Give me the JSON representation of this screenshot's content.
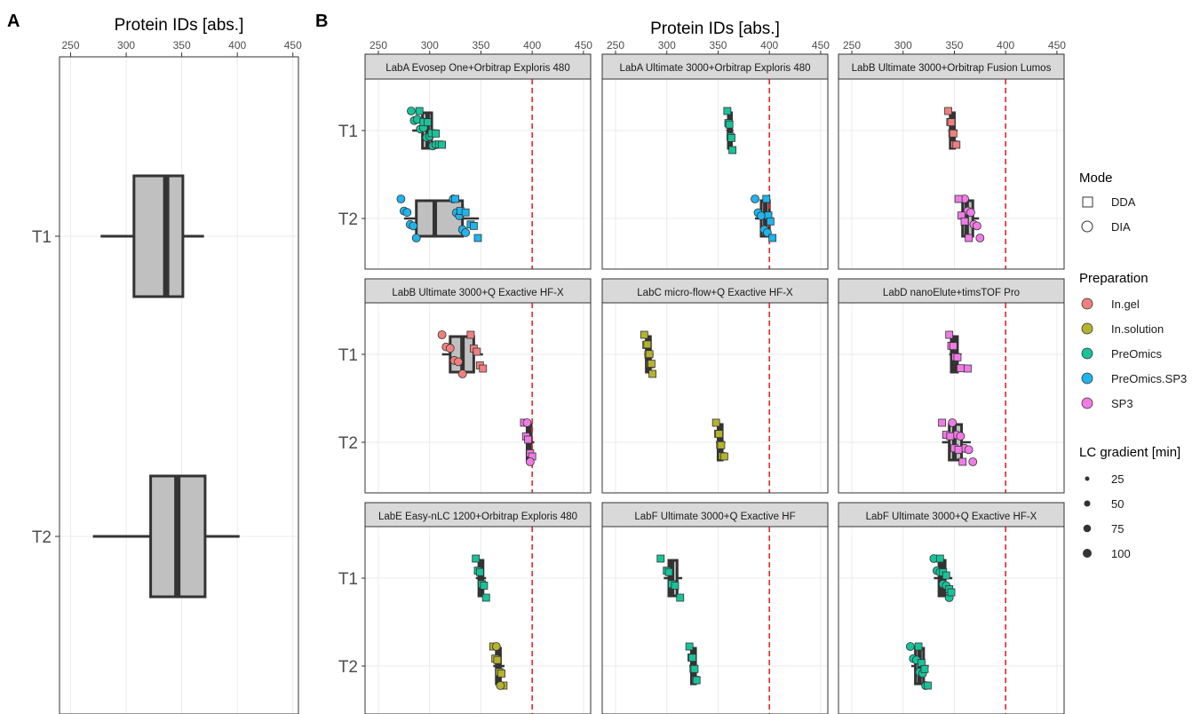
{
  "panel_labels": {
    "a": "A",
    "b": "B"
  },
  "legend": {
    "mode": {
      "title": "Mode",
      "items": [
        {
          "label": "DDA",
          "shape": "square"
        },
        {
          "label": "DIA",
          "shape": "circle"
        }
      ]
    },
    "preparation": {
      "title": "Preparation",
      "items": [
        {
          "label": "In.gel",
          "color": "#F08080"
        },
        {
          "label": "In.solution",
          "color": "#B5B22F"
        },
        {
          "label": "PreOmics",
          "color": "#18C39A"
        },
        {
          "label": "PreOmics.SP3",
          "color": "#1FB4EC"
        },
        {
          "label": "SP3",
          "color": "#F07BE6"
        }
      ]
    },
    "lc_gradient": {
      "title": "LC gradient [min]",
      "items": [
        "25",
        "50",
        "75",
        "100"
      ]
    }
  },
  "chart_data": [
    {
      "type": "box",
      "panel": "A",
      "xlabel": "Protein IDs [abs.]",
      "xlim": [
        240,
        455
      ],
      "xticks": [
        250,
        300,
        350,
        400,
        450
      ],
      "categories": [
        "T1",
        "T2"
      ],
      "boxes": [
        {
          "category": "T1",
          "whisker_low": 277,
          "q1": 307,
          "median": 336,
          "q3": 351,
          "whisker_high": 370
        },
        {
          "category": "T2",
          "whisker_low": 270,
          "q1": 322,
          "median": 346,
          "q3": 371,
          "whisker_high": 402
        }
      ]
    },
    {
      "type": "scatter",
      "panel": "B",
      "xlabel": "Protein IDs [abs.]",
      "xlim": [
        237,
        457
      ],
      "xticks": [
        250,
        300,
        350,
        400,
        450
      ],
      "reference_line": 400,
      "categories": [
        "T1",
        "T2"
      ],
      "facets": [
        {
          "title": "LabA Evosep One+Orbitrap Exploris 480",
          "boxes": [
            {
              "category": "T1",
              "whisker_low": 283,
              "q1": 293,
              "median": 298,
              "q3": 302,
              "whisker_high": 308
            },
            {
              "category": "T2",
              "whisker_low": 275,
              "q1": 287,
              "median": 305,
              "q3": 332,
              "whisker_high": 348
            }
          ],
          "groups": [
            {
              "category": "T1",
              "prep": "PreOmics",
              "mode": "DIA",
              "values": [
                282,
                285,
                288,
                291,
                294,
                297,
                300,
                303,
                306
              ]
            },
            {
              "category": "T1",
              "prep": "PreOmics",
              "mode": "DDA",
              "values": [
                290,
                294,
                298,
                302,
                306,
                309,
                312
              ]
            },
            {
              "category": "T2",
              "prep": "PreOmics.SP3",
              "mode": "DIA",
              "values": [
                272,
                275,
                278,
                281,
                284,
                287
              ]
            },
            {
              "category": "T2",
              "prep": "PreOmics.SP3",
              "mode": "DIA",
              "values": [
                323,
                326,
                329,
                332,
                335
              ]
            },
            {
              "category": "T2",
              "prep": "PreOmics.SP3",
              "mode": "DDA",
              "values": [
                325,
                330,
                335,
                340,
                343,
                347
              ]
            }
          ]
        },
        {
          "title": "LabA Ultimate 3000+Orbitrap Exploris 480",
          "boxes": [
            {
              "category": "T1",
              "whisker_low": 358,
              "q1": 360,
              "median": 362,
              "q3": 363,
              "whisker_high": 365
            },
            {
              "category": "T2",
              "whisker_low": 386,
              "q1": 392,
              "median": 396,
              "q3": 400,
              "whisker_high": 404
            }
          ],
          "groups": [
            {
              "category": "T1",
              "prep": "PreOmics",
              "mode": "DDA",
              "values": [
                359,
                360,
                361,
                362,
                363,
                364
              ]
            },
            {
              "category": "T2",
              "prep": "PreOmics.SP3",
              "mode": "DIA",
              "values": [
                386,
                389,
                392,
                395,
                398
              ]
            },
            {
              "category": "T2",
              "prep": "PreOmics.SP3",
              "mode": "DDA",
              "values": [
                397,
                399,
                401,
                403
              ]
            }
          ]
        },
        {
          "title": "LabB Ultimate 3000+Orbitrap Fusion Lumos",
          "boxes": [
            {
              "category": "T1",
              "whisker_low": 344,
              "q1": 346,
              "median": 348,
              "q3": 350,
              "whisker_high": 353
            },
            {
              "category": "T2",
              "whisker_low": 355,
              "q1": 358,
              "median": 362,
              "q3": 368,
              "whisker_high": 374
            }
          ],
          "groups": [
            {
              "category": "T1",
              "prep": "In.gel",
              "mode": "DDA",
              "values": [
                344,
                346,
                347,
                348,
                349,
                350,
                352
              ]
            },
            {
              "category": "T2",
              "prep": "SP3",
              "mode": "DIA",
              "values": [
                360,
                363,
                366,
                369,
                372,
                375
              ]
            },
            {
              "category": "T2",
              "prep": "SP3",
              "mode": "DDA",
              "values": [
                354,
                357,
                360,
                364
              ]
            }
          ]
        },
        {
          "title": "LabB Ultimate 3000+Q Exactive HF-X",
          "boxes": [
            {
              "category": "T1",
              "whisker_low": 312,
              "q1": 320,
              "median": 332,
              "q3": 343,
              "whisker_high": 352
            },
            {
              "category": "T2",
              "whisker_low": 393,
              "q1": 395,
              "median": 397,
              "q3": 399,
              "whisker_high": 402
            }
          ],
          "groups": [
            {
              "category": "T1",
              "prep": "In.gel",
              "mode": "DIA",
              "values": [
                312,
                316,
                320,
                324,
                328,
                332
              ]
            },
            {
              "category": "T1",
              "prep": "In.gel",
              "mode": "DDA",
              "values": [
                340,
                343,
                346,
                349,
                352
              ]
            },
            {
              "category": "T2",
              "prep": "SP3",
              "mode": "DDA",
              "values": [
                392,
                394,
                396,
                398,
                400
              ]
            },
            {
              "category": "T2",
              "prep": "SP3",
              "mode": "DIA",
              "values": [
                395,
                398
              ]
            }
          ]
        },
        {
          "title": "LabC micro-flow+Q Exactive HF-X",
          "boxes": [
            {
              "category": "T1",
              "whisker_low": 278,
              "q1": 280,
              "median": 282,
              "q3": 284,
              "whisker_high": 287
            },
            {
              "category": "T2",
              "whisker_low": 348,
              "q1": 350,
              "median": 352,
              "q3": 354,
              "whisker_high": 357
            }
          ],
          "groups": [
            {
              "category": "T1",
              "prep": "In.solution",
              "mode": "DDA",
              "values": [
                278,
                280,
                281,
                282,
                283,
                284,
                285,
                286
              ]
            },
            {
              "category": "T2",
              "prep": "In.solution",
              "mode": "DDA",
              "values": [
                348,
                350,
                351,
                352,
                353,
                354,
                356
              ]
            }
          ]
        },
        {
          "title": "LabD nanoElute+timsTOF Pro",
          "boxes": [
            {
              "category": "T1",
              "whisker_low": 345,
              "q1": 347,
              "median": 350,
              "q3": 353,
              "whisker_high": 357
            },
            {
              "category": "T2",
              "whisker_low": 338,
              "q1": 345,
              "median": 350,
              "q3": 357,
              "whisker_high": 366
            }
          ],
          "groups": [
            {
              "category": "T1",
              "prep": "SP3",
              "mode": "DDA",
              "values": [
                345,
                347,
                349,
                351,
                353,
                356,
                363
              ]
            },
            {
              "category": "T2",
              "prep": "SP3",
              "mode": "DIA",
              "values": [
                348,
                352,
                356,
                360,
                364,
                368
              ]
            },
            {
              "category": "T2",
              "prep": "SP3",
              "mode": "DDA",
              "values": [
                338,
                342,
                346,
                350,
                354,
                358
              ]
            }
          ]
        },
        {
          "title": "LabE Easy-nLC 1200+Orbitrap Exploris 480",
          "boxes": [
            {
              "category": "T1",
              "whisker_low": 345,
              "q1": 348,
              "median": 350,
              "q3": 352,
              "whisker_high": 355
            },
            {
              "category": "T2",
              "whisker_low": 362,
              "q1": 365,
              "median": 367,
              "q3": 369,
              "whisker_high": 373
            }
          ],
          "groups": [
            {
              "category": "T1",
              "prep": "PreOmics",
              "mode": "DDA",
              "values": [
                345,
                347,
                349,
                351,
                353,
                355
              ]
            },
            {
              "category": "T2",
              "prep": "In.solution",
              "mode": "DDA",
              "values": [
                362,
                364,
                366,
                368,
                370,
                372
              ]
            },
            {
              "category": "T2",
              "prep": "In.solution",
              "mode": "DIA",
              "values": [
                365,
                369
              ]
            }
          ]
        },
        {
          "title": "LabF Ultimate 3000+Q Exactive HF",
          "boxes": [
            {
              "category": "T1",
              "whisker_low": 297,
              "q1": 302,
              "median": 305,
              "q3": 310,
              "whisker_high": 315
            },
            {
              "category": "T2",
              "whisker_low": 322,
              "q1": 324,
              "median": 326,
              "q3": 328,
              "whisker_high": 330
            }
          ],
          "groups": [
            {
              "category": "T1",
              "prep": "PreOmics",
              "mode": "DDA",
              "values": [
                294,
                300,
                302,
                305,
                308,
                313
              ]
            },
            {
              "category": "T2",
              "prep": "PreOmics",
              "mode": "DDA",
              "values": [
                322,
                324,
                325,
                326,
                327,
                328,
                329
              ]
            }
          ]
        },
        {
          "title": "LabF Ultimate 3000+Q Exactive HF-X",
          "boxes": [
            {
              "category": "T1",
              "whisker_low": 330,
              "q1": 335,
              "median": 338,
              "q3": 341,
              "whisker_high": 348
            },
            {
              "category": "T2",
              "whisker_low": 308,
              "q1": 312,
              "median": 316,
              "q3": 320,
              "whisker_high": 325
            }
          ],
          "groups": [
            {
              "category": "T1",
              "prep": "PreOmics",
              "mode": "DIA",
              "values": [
                330,
                333,
                336,
                339,
                342,
                345
              ]
            },
            {
              "category": "T1",
              "prep": "PreOmics",
              "mode": "DDA",
              "values": [
                336,
                339,
                342,
                345,
                347
              ]
            },
            {
              "category": "T2",
              "prep": "PreOmics",
              "mode": "DIA",
              "values": [
                307,
                310,
                313,
                316,
                319,
                322
              ]
            },
            {
              "category": "T2",
              "prep": "PreOmics",
              "mode": "DDA",
              "values": [
                315,
                318,
                321,
                324
              ]
            }
          ]
        }
      ]
    }
  ]
}
